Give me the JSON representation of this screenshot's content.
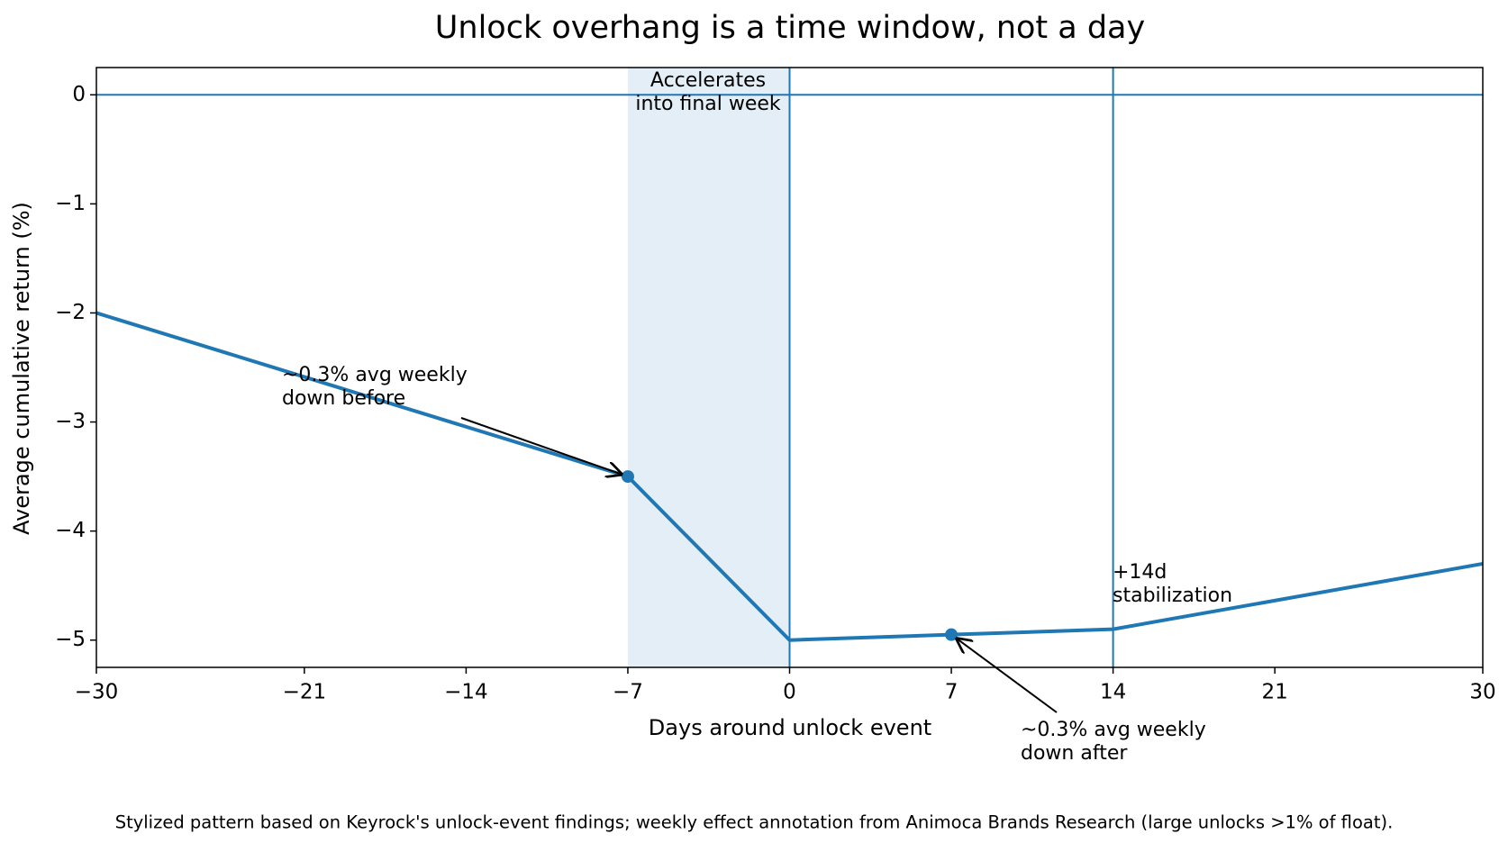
{
  "chart_data": {
    "type": "line",
    "title": "Unlock overhang is a time window, not a day",
    "xlabel": "Days around unlock event",
    "ylabel": "Average cumulative return (%)",
    "x": [
      -30,
      -7,
      0,
      7,
      14,
      30
    ],
    "series": [
      {
        "color": "#1f77b4",
        "values": [
          -2,
          -3.5,
          -5,
          -4.95,
          -4.9,
          -4.3
        ]
      }
    ],
    "highlight_points": {
      "x": [
        -7,
        7
      ],
      "y": [
        -3.5,
        -4.95
      ]
    },
    "shaded_span": [
      -7,
      0
    ],
    "vlines": [
      0,
      14
    ],
    "hlines": [
      0
    ],
    "xlim": [
      -30,
      30
    ],
    "ylim": [
      -5.25,
      0.25
    ],
    "xticks": [
      {
        "value": -30,
        "label": "−30"
      },
      {
        "value": -21,
        "label": "−21"
      },
      {
        "value": -14,
        "label": "−14"
      },
      {
        "value": -7,
        "label": "−7"
      },
      0,
      7,
      14,
      21,
      30
    ],
    "yticks": [
      0,
      {
        "value": -1,
        "label": "−1"
      },
      {
        "value": -2,
        "label": "−2"
      },
      {
        "value": -3,
        "label": "−3"
      },
      {
        "value": -4,
        "label": "−4"
      },
      {
        "value": -5,
        "label": "−5"
      }
    ],
    "annotations": [
      {
        "lines": [
          "Accelerates",
          "into final week"
        ]
      },
      {
        "lines": [
          "~0.3% avg weekly",
          "down before"
        ]
      },
      {
        "lines": [
          "~0.3% avg weekly",
          "down after"
        ]
      },
      {
        "lines": [
          "+14d",
          "stabilization"
        ]
      }
    ],
    "note": "Stylized pattern based on Keyrock's unlock-event findings; weekly effect annotation from Animoca Brands Research (large unlocks >1% of float)."
  }
}
